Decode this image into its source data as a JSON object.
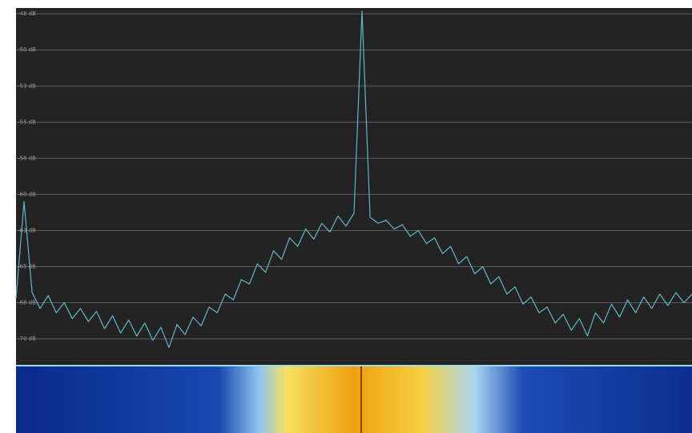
{
  "chart_data": {
    "type": "line",
    "color": "#5fb8c9",
    "grid": true,
    "ylim": [
      -71.8,
      -47.1
    ],
    "yticks": [
      {
        "value": -47.5,
        "label": "-48 dB"
      },
      {
        "value": -50,
        "label": "-50 dB"
      },
      {
        "value": -52.5,
        "label": "-53 dB"
      },
      {
        "value": -55,
        "label": "-55 dB"
      },
      {
        "value": -57.5,
        "label": "-58 dB"
      },
      {
        "value": -60,
        "label": "-60 dB"
      },
      {
        "value": -62.5,
        "label": "-63 dB"
      },
      {
        "value": -65,
        "label": "-65 dB"
      },
      {
        "value": -67.5,
        "label": "-68 dB"
      },
      {
        "value": -70,
        "label": "-70 dB"
      }
    ],
    "values": [
      -67.2,
      -60.5,
      -66.8,
      -67.9,
      -67.0,
      -68.2,
      -67.5,
      -68.6,
      -67.9,
      -68.8,
      -68.1,
      -69.3,
      -68.4,
      -69.6,
      -68.7,
      -69.8,
      -68.9,
      -70.1,
      -69.2,
      -70.6,
      -69.0,
      -69.7,
      -68.5,
      -69.1,
      -67.8,
      -68.2,
      -66.9,
      -67.3,
      -65.9,
      -66.2,
      -64.8,
      -65.4,
      -63.9,
      -64.5,
      -63.0,
      -63.6,
      -62.4,
      -63.1,
      -62.0,
      -62.6,
      -61.5,
      -62.2,
      -61.3,
      -47.3,
      -61.6,
      -62.0,
      -61.8,
      -62.4,
      -62.1,
      -62.9,
      -62.5,
      -63.4,
      -63.0,
      -64.1,
      -63.6,
      -64.8,
      -64.3,
      -65.5,
      -65.0,
      -66.2,
      -65.7,
      -66.9,
      -66.4,
      -67.6,
      -67.1,
      -68.2,
      -67.8,
      -68.9,
      -68.3,
      -69.4,
      -68.6,
      -69.8,
      -68.2,
      -68.9,
      -67.6,
      -68.5,
      -67.3,
      -68.2,
      -67.1,
      -67.9,
      -66.9,
      -67.7,
      -66.8,
      -67.5,
      -66.9
    ]
  }
}
